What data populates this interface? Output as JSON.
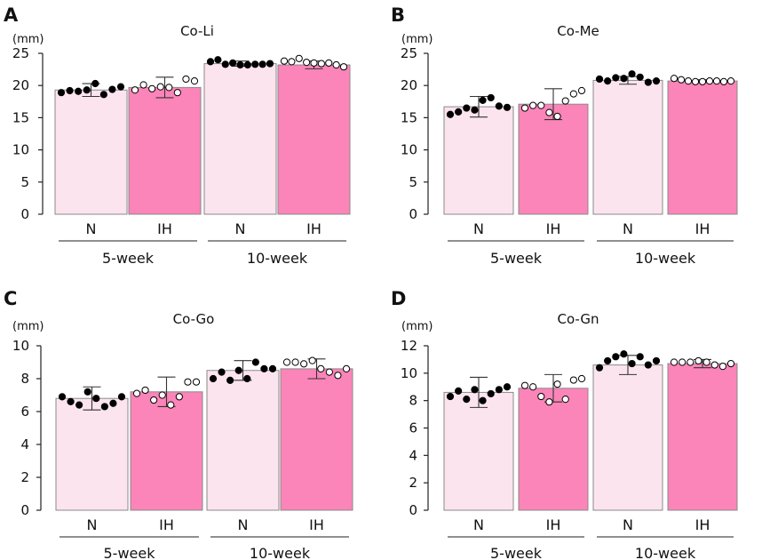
{
  "colors": {
    "n_bar": "#fce4ef",
    "ih_bar": "#fb84b8",
    "bar_stroke": "#8a8a8a",
    "axis": "#222222",
    "dot_filled": "#000000",
    "dot_open": "#ffffff"
  },
  "chart_data": [
    {
      "panel": "A",
      "title": "Co-Li",
      "type": "bar",
      "ylabel": "(mm)",
      "ylim": [
        0,
        25
      ],
      "yticks": [
        "0",
        "5",
        "10",
        "15",
        "20",
        "25"
      ],
      "categories": [
        "N",
        "IH",
        "N",
        "IH"
      ],
      "groups": [
        "5-week",
        "10-week"
      ],
      "values": [
        19.3,
        19.7,
        23.4,
        23.2
      ],
      "errors": [
        1.0,
        1.6,
        0.4,
        0.6
      ],
      "points": [
        [
          18.9,
          19.2,
          19.1,
          19.3,
          20.3,
          18.6,
          19.4,
          19.8
        ],
        [
          19.3,
          20.1,
          19.5,
          19.8,
          19.7,
          18.9,
          21.0,
          20.7
        ],
        [
          23.7,
          24.0,
          23.3,
          23.5,
          23.2,
          23.2,
          23.3,
          23.3,
          23.4
        ],
        [
          23.8,
          23.7,
          24.2,
          23.6,
          23.5,
          23.4,
          23.5,
          23.2,
          22.9
        ]
      ],
      "point_fill": [
        "filled",
        "open",
        "filled",
        "open"
      ]
    },
    {
      "panel": "B",
      "title": "Co-Me",
      "type": "bar",
      "ylabel": "(mm)",
      "ylim": [
        0,
        25
      ],
      "yticks": [
        "0",
        "5",
        "10",
        "15",
        "20",
        "25"
      ],
      "categories": [
        "N",
        "IH",
        "N",
        "IH"
      ],
      "groups": [
        "5-week",
        "10-week"
      ],
      "values": [
        16.7,
        17.1,
        20.8,
        20.7
      ],
      "errors": [
        1.6,
        2.4,
        0.6,
        0.2
      ],
      "points": [
        [
          15.5,
          15.9,
          16.5,
          16.2,
          17.7,
          18.1,
          16.8,
          16.6
        ],
        [
          16.5,
          16.9,
          16.9,
          15.8,
          15.2,
          17.6,
          18.7,
          19.2
        ],
        [
          21.0,
          20.7,
          21.2,
          21.1,
          21.8,
          21.3,
          20.5,
          20.7
        ],
        [
          21.1,
          20.9,
          20.7,
          20.6,
          20.6,
          20.7,
          20.7,
          20.6,
          20.7
        ]
      ],
      "point_fill": [
        "filled",
        "open",
        "filled",
        "open"
      ]
    },
    {
      "panel": "C",
      "title": "Co-Go",
      "type": "bar",
      "ylabel": "(mm)",
      "ylim": [
        0,
        10
      ],
      "yticks": [
        "0",
        "2",
        "4",
        "6",
        "8",
        "10"
      ],
      "categories": [
        "N",
        "IH",
        "N",
        "IH"
      ],
      "groups": [
        "5-week",
        "10-week"
      ],
      "values": [
        6.8,
        7.2,
        8.5,
        8.6
      ],
      "errors": [
        0.7,
        0.9,
        0.6,
        0.6
      ],
      "points": [
        [
          6.9,
          6.6,
          6.4,
          7.2,
          6.8,
          6.3,
          6.5,
          6.9
        ],
        [
          7.1,
          7.3,
          6.7,
          7.0,
          6.4,
          6.9,
          7.8,
          7.8
        ],
        [
          8.0,
          8.4,
          7.9,
          8.5,
          8.0,
          9.0,
          8.6,
          8.6
        ],
        [
          9.0,
          9.0,
          8.9,
          9.1,
          8.6,
          8.4,
          8.2,
          8.6
        ]
      ],
      "point_fill": [
        "filled",
        "open",
        "filled",
        "open"
      ]
    },
    {
      "panel": "D",
      "title": "Co-Gn",
      "type": "bar",
      "ylabel": "(mm)",
      "ylim": [
        0,
        12
      ],
      "yticks": [
        "0",
        "2",
        "4",
        "6",
        "8",
        "10",
        "12"
      ],
      "categories": [
        "N",
        "IH",
        "N",
        "IH"
      ],
      "groups": [
        "5-week",
        "10-week"
      ],
      "values": [
        8.6,
        8.9,
        10.6,
        10.7
      ],
      "errors": [
        1.1,
        1.0,
        0.7,
        0.3
      ],
      "points": [
        [
          8.3,
          8.7,
          8.1,
          8.8,
          8.0,
          8.5,
          8.8,
          9.0
        ],
        [
          9.1,
          9.0,
          8.3,
          7.9,
          9.2,
          8.1,
          9.5,
          9.6
        ],
        [
          10.4,
          10.9,
          11.2,
          11.4,
          10.7,
          11.2,
          10.6,
          10.9
        ],
        [
          10.8,
          10.8,
          10.8,
          10.9,
          10.8,
          10.6,
          10.5,
          10.7
        ]
      ],
      "point_fill": [
        "filled",
        "open",
        "filled",
        "open"
      ]
    }
  ]
}
